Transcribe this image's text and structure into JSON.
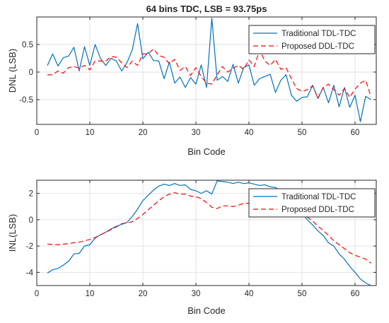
{
  "chart_data": [
    {
      "type": "line",
      "title": "64 bins TDC, LSB = 93.75ps",
      "xlabel": "Bin Code",
      "ylabel": "DNL (LSB)",
      "xlim": [
        0,
        64
      ],
      "ylim": [
        -0.95,
        1.0
      ],
      "xticks": [
        0,
        10,
        20,
        30,
        40,
        50,
        60
      ],
      "xtick_labels": [
        "0",
        "10",
        "20",
        "30",
        "40",
        "50",
        "60"
      ],
      "yticks": [
        0.5,
        0,
        -0.5
      ],
      "ytick_labels": [
        "0.5",
        "0",
        "-0.5"
      ],
      "grid": true,
      "legend_position": "top-right",
      "series": [
        {
          "name": "Traditional TDL-TDC",
          "color": "#0072BD",
          "dash": "solid",
          "x": [
            2,
            3,
            4,
            5,
            6,
            7,
            8,
            9,
            10,
            11,
            12,
            13,
            14,
            15,
            16,
            17,
            18,
            19,
            20,
            21,
            22,
            23,
            24,
            25,
            26,
            27,
            28,
            29,
            30,
            31,
            32,
            33,
            34,
            35,
            36,
            37,
            38,
            39,
            40,
            41,
            42,
            43,
            44,
            45,
            46,
            47,
            48,
            49,
            50,
            51,
            52,
            53,
            54,
            55,
            56,
            57,
            58,
            59,
            60,
            61,
            62,
            63
          ],
          "values": [
            0.12,
            0.33,
            0.11,
            0.26,
            0.29,
            0.45,
            0.02,
            0.46,
            0.12,
            0.5,
            0.25,
            0.12,
            0.25,
            0.2,
            0.02,
            0.17,
            0.4,
            0.88,
            0.24,
            0.36,
            0.21,
            0.2,
            -0.12,
            0.18,
            -0.2,
            -0.09,
            -0.28,
            -0.1,
            -0.22,
            0.13,
            -0.28,
            0.98,
            -0.15,
            -0.08,
            -0.17,
            0.14,
            -0.2,
            0.08,
            0.13,
            -0.24,
            -0.12,
            -0.08,
            -0.04,
            -0.37,
            -0.15,
            -0.05,
            -0.42,
            -0.53,
            -0.46,
            -0.45,
            -0.24,
            -0.48,
            -0.28,
            -0.56,
            -0.24,
            -0.63,
            -0.28,
            -0.64,
            -0.42,
            -0.9,
            -0.44,
            -0.5
          ]
        },
        {
          "name": "Proposed DDL-TDC",
          "color": "#FF0000",
          "dash": "dashed",
          "x": [
            2,
            3,
            4,
            5,
            6,
            7,
            8,
            9,
            10,
            11,
            12,
            13,
            14,
            15,
            16,
            17,
            18,
            19,
            20,
            21,
            22,
            23,
            24,
            25,
            26,
            27,
            28,
            29,
            30,
            31,
            32,
            33,
            34,
            35,
            36,
            37,
            38,
            39,
            40,
            41,
            42,
            43,
            44,
            45,
            46,
            47,
            48,
            49,
            50,
            51,
            52,
            53,
            54,
            55,
            56,
            57,
            58,
            59,
            60,
            61,
            62,
            63
          ],
          "values": [
            -0.05,
            -0.05,
            0.02,
            -0.02,
            0.08,
            0.1,
            0.07,
            0.12,
            0.04,
            0.2,
            0.2,
            0.2,
            0.28,
            0.27,
            0.17,
            0.08,
            0.2,
            0.12,
            0.33,
            0.33,
            0.42,
            0.3,
            0.27,
            0.15,
            0.23,
            0.03,
            0.1,
            -0.06,
            0.08,
            -0.08,
            -0.2,
            -0.22,
            -0.05,
            0.1,
            0.0,
            0.07,
            0.12,
            0.05,
            0.22,
            0.1,
            0.4,
            0.2,
            0.12,
            0.23,
            0.05,
            0.08,
            -0.12,
            -0.3,
            -0.35,
            -0.32,
            -0.25,
            -0.47,
            -0.28,
            -0.22,
            -0.32,
            -0.42,
            -0.3,
            -0.46,
            -0.31,
            -0.2,
            -0.15,
            -0.45
          ]
        }
      ]
    },
    {
      "type": "line",
      "title": "",
      "xlabel": "Bin Code",
      "ylabel": "INL(LSB)",
      "xlim": [
        0,
        64
      ],
      "ylim": [
        -5,
        3
      ],
      "xticks": [
        0,
        10,
        20,
        30,
        40,
        50,
        60
      ],
      "xtick_labels": [
        "0",
        "10",
        "20",
        "30",
        "40",
        "50",
        "60"
      ],
      "yticks": [
        2,
        0,
        -2,
        -4
      ],
      "ytick_labels": [
        "2",
        "0",
        "-2",
        "-4"
      ],
      "grid": true,
      "legend_position": "top-right",
      "series": [
        {
          "name": "Traditional TDL-TDC",
          "color": "#0072BD",
          "dash": "solid",
          "x": [
            2,
            3,
            4,
            5,
            6,
            7,
            8,
            9,
            10,
            11,
            12,
            13,
            14,
            15,
            16,
            17,
            18,
            19,
            20,
            21,
            22,
            23,
            24,
            25,
            26,
            27,
            28,
            29,
            30,
            31,
            32,
            33,
            34,
            35,
            36,
            37,
            38,
            39,
            40,
            41,
            42,
            43,
            44,
            45,
            46,
            47,
            48,
            49,
            50,
            51,
            52,
            53,
            54,
            55,
            56,
            57,
            58,
            59,
            60,
            61,
            62,
            63
          ],
          "values": [
            -4.05,
            -3.8,
            -3.7,
            -3.45,
            -3.15,
            -2.6,
            -2.55,
            -2.0,
            -1.9,
            -1.4,
            -1.15,
            -0.95,
            -0.7,
            -0.5,
            -0.35,
            -0.2,
            0.25,
            0.8,
            1.45,
            1.85,
            2.25,
            2.55,
            2.7,
            2.6,
            2.75,
            2.6,
            2.65,
            2.3,
            2.2,
            2.0,
            2.2,
            1.95,
            2.95,
            2.9,
            2.85,
            2.75,
            2.85,
            2.75,
            2.8,
            2.7,
            2.6,
            2.65,
            2.5,
            2.45,
            2.15,
            1.9,
            1.55,
            1.0,
            0.5,
            0.0,
            -0.4,
            -0.85,
            -1.2,
            -1.75,
            -2.0,
            -2.6,
            -3.0,
            -3.55,
            -4.0,
            -4.5,
            -4.8,
            -5.0
          ]
        },
        {
          "name": "Proposed DDL-TDC",
          "color": "#FF0000",
          "dash": "dashed",
          "x": [
            2,
            3,
            4,
            5,
            6,
            7,
            8,
            9,
            10,
            11,
            12,
            13,
            14,
            15,
            16,
            17,
            18,
            19,
            20,
            21,
            22,
            23,
            24,
            25,
            26,
            27,
            28,
            29,
            30,
            31,
            32,
            33,
            34,
            35,
            36,
            37,
            38,
            39,
            40,
            41,
            42,
            43,
            44,
            45,
            46,
            47,
            48,
            49,
            50,
            51,
            52,
            53,
            54,
            55,
            56,
            57,
            58,
            59,
            60,
            61,
            62,
            63
          ],
          "values": [
            -1.85,
            -1.88,
            -1.9,
            -1.86,
            -1.82,
            -1.75,
            -1.7,
            -1.6,
            -1.5,
            -1.35,
            -1.15,
            -0.95,
            -0.75,
            -0.55,
            -0.3,
            -0.25,
            -0.15,
            0.1,
            0.4,
            0.75,
            1.1,
            1.45,
            1.75,
            1.95,
            2.05,
            1.95,
            1.95,
            1.8,
            1.75,
            1.6,
            1.3,
            0.95,
            0.85,
            1.05,
            1.05,
            1.0,
            1.1,
            1.25,
            1.25,
            1.3,
            1.5,
            1.75,
            1.9,
            1.85,
            1.75,
            1.55,
            1.2,
            0.85,
            0.5,
            0.2,
            -0.1,
            -0.5,
            -0.8,
            -1.2,
            -1.6,
            -1.9,
            -2.2,
            -2.5,
            -2.7,
            -2.85,
            -3.0,
            -3.3
          ]
        }
      ]
    }
  ]
}
